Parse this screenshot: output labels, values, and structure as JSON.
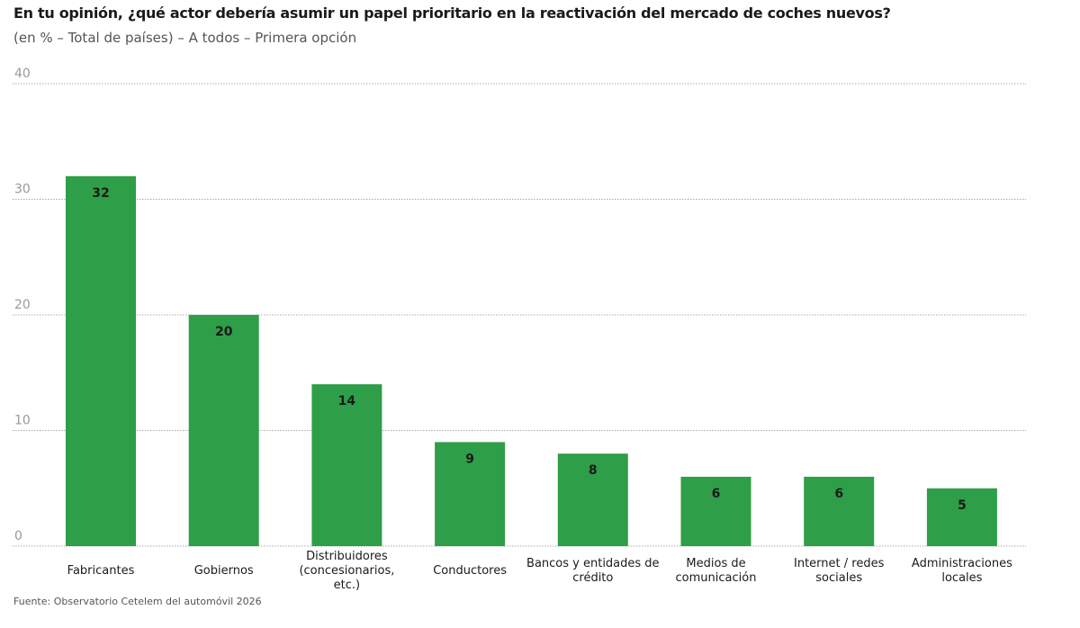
{
  "chart_data": {
    "type": "bar",
    "title": "En tu opinión, ¿qué actor debería asumir un papel prioritario en la reactivación del mercado de coches nuevos?",
    "subtitle": "(en % – Total de países) – A todos – Primera opción",
    "source": "Fuente: Observatorio Cetelem del automóvil 2026",
    "categories": [
      [
        "Fabricantes"
      ],
      [
        "Gobiernos"
      ],
      [
        "Distribuidores",
        "(concesionarios,",
        "etc.)"
      ],
      [
        "Conductores"
      ],
      [
        "Bancos y entidades de",
        "crédito"
      ],
      [
        "Medios de",
        "comunicación"
      ],
      [
        "Internet / redes",
        "sociales"
      ],
      [
        "Administraciones",
        "locales"
      ]
    ],
    "values": [
      32,
      20,
      14,
      9,
      8,
      6,
      6,
      5
    ],
    "ylim": [
      0,
      40
    ],
    "yticks": [
      0,
      10,
      20,
      30,
      40
    ],
    "grid": true,
    "bar_color": "#2e9e48"
  }
}
